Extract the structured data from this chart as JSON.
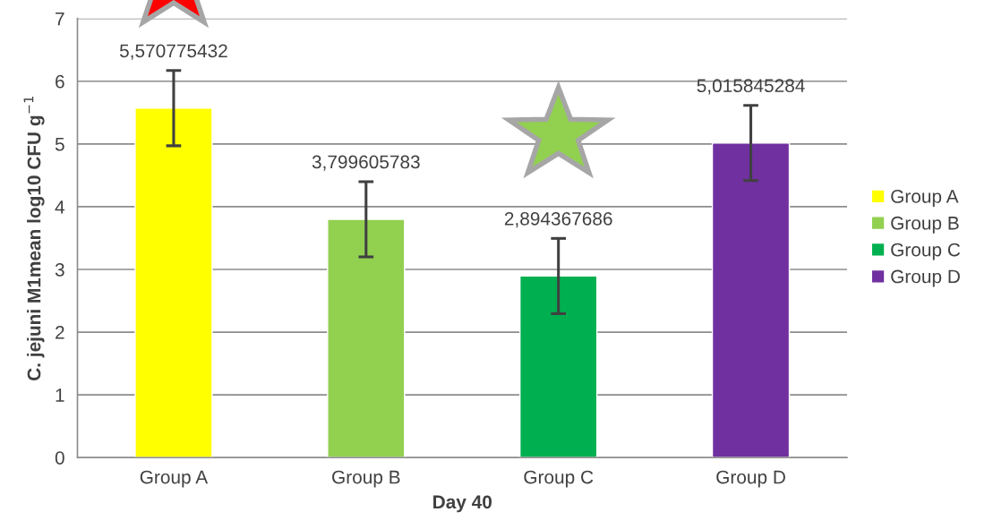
{
  "chart_data": {
    "type": "bar",
    "xlabel": "Day 40",
    "ylabel": "C. jejuni M1mean log10 CFU g$^{−1}$",
    "categories": [
      "Group A",
      "Group B",
      "Group C",
      "Group D"
    ],
    "series": [
      {
        "name": "Group A",
        "color": "#ffff00",
        "values": [
          5.570775432,
          null,
          null,
          null
        ],
        "errors": [
          0.6,
          null,
          null,
          null
        ],
        "value_labels": [
          "5,570775432",
          null,
          null,
          null
        ]
      },
      {
        "name": "Group B",
        "color": "#92d050",
        "values": [
          null,
          3.799605783,
          null,
          null
        ],
        "errors": [
          null,
          0.6,
          null,
          null
        ],
        "value_labels": [
          null,
          "3,799605783",
          null,
          null
        ]
      },
      {
        "name": "Group C",
        "color": "#00b050",
        "values": [
          null,
          null,
          2.894367686,
          null
        ],
        "errors": [
          null,
          null,
          0.6,
          null
        ],
        "value_labels": [
          null,
          null,
          "2,894367686",
          null
        ]
      },
      {
        "name": "Group D",
        "color": "#7030a0",
        "values": [
          null,
          null,
          null,
          5.015845284
        ],
        "errors": [
          null,
          null,
          null,
          0.6
        ],
        "value_labels": [
          null,
          null,
          null,
          "5,015845284"
        ]
      }
    ],
    "ylim": [
      0,
      7
    ],
    "yticks": [
      0,
      1,
      2,
      3,
      4,
      5,
      6,
      7
    ],
    "grid": "y",
    "legend": "right"
  }
}
